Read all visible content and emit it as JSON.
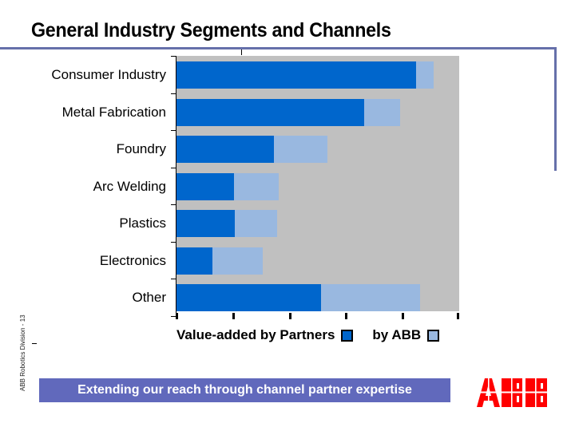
{
  "slide": {
    "title": "General Industry Segments and Channels",
    "footer_side_label": "ABB Robotics Division - 13",
    "banner_text": "Extending our reach through channel partner expertise",
    "logo_text": "ABB"
  },
  "colors": {
    "frame": "#6670aa",
    "plot_background": "#c0c0c0",
    "partner_bar": "#0066cc",
    "abb_bar": "#99b8e0",
    "banner": "#6169bc",
    "logo": "#ff0000"
  },
  "legend": {
    "partners_label": "Value-added by Partners",
    "abb_label": "by ABB"
  },
  "chart_data": {
    "type": "bar",
    "orientation": "horizontal",
    "stacked": true,
    "title": "General Industry Segments and Channels",
    "xlabel": "",
    "ylabel": "",
    "xlim": [
      0,
      5
    ],
    "x_ticks": [
      0,
      1,
      2,
      3,
      4,
      5
    ],
    "x_tick_labels_shown": false,
    "grid": false,
    "legend_position": "bottom",
    "categories": [
      "Consumer Industry",
      "Metal Fabrication",
      "Foundry",
      "Arc Welding",
      "Plastics",
      "Electronics",
      "Other"
    ],
    "series": [
      {
        "name": "Value-added by Partners",
        "color": "#0066cc",
        "values": [
          4.24,
          3.32,
          1.72,
          1.02,
          1.03,
          0.64,
          2.56
        ]
      },
      {
        "name": "by ABB",
        "color": "#99b8e0",
        "values": [
          0.31,
          0.63,
          0.95,
          0.79,
          0.75,
          0.89,
          1.75
        ]
      }
    ]
  }
}
